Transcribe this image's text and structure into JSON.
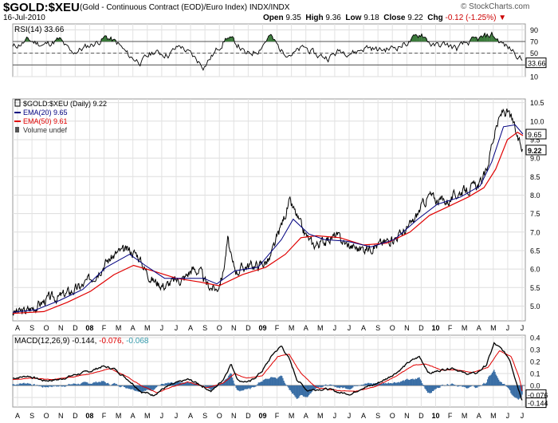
{
  "header": {
    "symbol": "$GOLD:$XEU",
    "description": "(Gold - Continuous Contract (EOD)/Euro Index)",
    "exchange": "INDX/INDX",
    "date": "16-Jul-2010",
    "open_label": "Open",
    "open": "9.35",
    "high_label": "High",
    "high": "9.36",
    "low_label": "Low",
    "low": "9.18",
    "close_label": "Close",
    "close": "9.22",
    "chg_label": "Chg",
    "chg": "-0.12 (-1.25%)",
    "chg_marker": "▼",
    "brand": "© StockCharts.com"
  },
  "colors": {
    "price": "#000000",
    "ema20": "#000080",
    "ema50": "#e00000",
    "rsi_fill": "#3a7a3a",
    "macd_hist": "#3a6ea5",
    "signal": "#e00000",
    "histogram_label": "#3399aa"
  },
  "chart_data": [
    {
      "type": "line",
      "title": "RSI(14) 33.66",
      "legend": "RSI(14)",
      "current": 33.66,
      "current_label": "33.66",
      "ylim": [
        10,
        100
      ],
      "yticks": [
        "10",
        "30",
        "50",
        "70",
        "90"
      ],
      "reference_lines": [
        30,
        50,
        70
      ],
      "anchors": [
        [
          0,
          60
        ],
        [
          20,
          72
        ],
        [
          40,
          64
        ],
        [
          60,
          73
        ],
        [
          75,
          50
        ],
        [
          90,
          58
        ],
        [
          110,
          70
        ],
        [
          120,
          78
        ],
        [
          135,
          66
        ],
        [
          150,
          44
        ],
        [
          165,
          35
        ],
        [
          180,
          52
        ],
        [
          200,
          48
        ],
        [
          215,
          63
        ],
        [
          230,
          46
        ],
        [
          245,
          28
        ],
        [
          260,
          52
        ],
        [
          275,
          78
        ],
        [
          290,
          63
        ],
        [
          300,
          46
        ],
        [
          315,
          56
        ],
        [
          330,
          80
        ],
        [
          345,
          54
        ],
        [
          360,
          49
        ],
        [
          375,
          60
        ],
        [
          390,
          46
        ],
        [
          405,
          43
        ],
        [
          420,
          54
        ],
        [
          440,
          52
        ],
        [
          455,
          61
        ],
        [
          470,
          55
        ],
        [
          485,
          58
        ],
        [
          500,
          64
        ],
        [
          515,
          74
        ],
        [
          525,
          84
        ],
        [
          540,
          62
        ],
        [
          555,
          65
        ],
        [
          570,
          58
        ],
        [
          585,
          68
        ],
        [
          600,
          74
        ],
        [
          615,
          82
        ],
        [
          625,
          70
        ],
        [
          635,
          60
        ],
        [
          645,
          52
        ],
        [
          655,
          36
        ]
      ]
    },
    {
      "type": "line",
      "title": "$GOLD:$XEU (Daily) 9.22",
      "series": [
        {
          "name": "$GOLD:$XEU (Daily)",
          "value": "9.22"
        },
        {
          "name": "EMA(20)",
          "value": "9.65"
        },
        {
          "name": "EMA(50)",
          "value": "9.61"
        },
        {
          "name": "Volume",
          "value": "undef"
        }
      ],
      "ylim": [
        4.6,
        10.6
      ],
      "yticks": [
        "5.0",
        "5.5",
        "6.0",
        "6.5",
        "7.0",
        "7.5",
        "8.0",
        "8.5",
        "9.0",
        "9.5",
        "10.0",
        "10.5"
      ],
      "markers": [
        {
          "label": "9.65"
        },
        {
          "label": "9.22"
        }
      ],
      "anchors": [
        [
          0,
          4.83
        ],
        [
          15,
          4.85
        ],
        [
          30,
          5.0
        ],
        [
          45,
          5.2
        ],
        [
          60,
          5.25
        ],
        [
          75,
          5.4
        ],
        [
          90,
          5.55
        ],
        [
          105,
          5.85
        ],
        [
          120,
          6.2
        ],
        [
          135,
          6.45
        ],
        [
          150,
          6.5
        ],
        [
          160,
          6.4
        ],
        [
          170,
          6.0
        ],
        [
          180,
          5.7
        ],
        [
          195,
          5.55
        ],
        [
          210,
          5.7
        ],
        [
          220,
          5.75
        ],
        [
          230,
          6.0
        ],
        [
          240,
          5.95
        ],
        [
          248,
          5.6
        ],
        [
          256,
          5.5
        ],
        [
          262,
          5.45
        ],
        [
          270,
          5.9
        ],
        [
          276,
          6.8
        ],
        [
          282,
          6.1
        ],
        [
          288,
          5.95
        ],
        [
          300,
          6.1
        ],
        [
          315,
          6.1
        ],
        [
          330,
          6.25
        ],
        [
          345,
          7.2
        ],
        [
          355,
          7.8
        ],
        [
          362,
          7.55
        ],
        [
          372,
          7.05
        ],
        [
          385,
          6.65
        ],
        [
          400,
          6.75
        ],
        [
          415,
          6.9
        ],
        [
          430,
          6.65
        ],
        [
          445,
          6.55
        ],
        [
          460,
          6.6
        ],
        [
          475,
          6.7
        ],
        [
          490,
          6.85
        ],
        [
          505,
          7.05
        ],
        [
          515,
          7.3
        ],
        [
          525,
          7.7
        ],
        [
          535,
          8.0
        ],
        [
          545,
          7.85
        ],
        [
          560,
          7.85
        ],
        [
          575,
          8.1
        ],
        [
          590,
          8.2
        ],
        [
          600,
          8.3
        ],
        [
          608,
          8.6
        ],
        [
          615,
          9.4
        ],
        [
          622,
          9.9
        ],
        [
          630,
          10.3
        ],
        [
          638,
          10.15
        ],
        [
          643,
          9.9
        ],
        [
          650,
          9.4
        ],
        [
          655,
          9.22
        ]
      ],
      "ema20_anchors": [
        [
          0,
          4.83
        ],
        [
          30,
          4.9
        ],
        [
          60,
          5.15
        ],
        [
          90,
          5.45
        ],
        [
          120,
          6.05
        ],
        [
          150,
          6.4
        ],
        [
          170,
          6.1
        ],
        [
          195,
          5.75
        ],
        [
          220,
          5.75
        ],
        [
          245,
          5.75
        ],
        [
          262,
          5.6
        ],
        [
          285,
          5.95
        ],
        [
          315,
          6.05
        ],
        [
          345,
          6.8
        ],
        [
          360,
          7.35
        ],
        [
          380,
          6.95
        ],
        [
          400,
          6.8
        ],
        [
          430,
          6.75
        ],
        [
          460,
          6.6
        ],
        [
          490,
          6.8
        ],
        [
          520,
          7.35
        ],
        [
          545,
          7.75
        ],
        [
          575,
          7.95
        ],
        [
          600,
          8.25
        ],
        [
          615,
          8.9
        ],
        [
          630,
          9.85
        ],
        [
          645,
          9.9
        ],
        [
          655,
          9.65
        ]
      ],
      "ema50_anchors": [
        [
          0,
          4.8
        ],
        [
          40,
          4.85
        ],
        [
          70,
          5.1
        ],
        [
          100,
          5.4
        ],
        [
          130,
          5.85
        ],
        [
          155,
          6.1
        ],
        [
          180,
          5.95
        ],
        [
          210,
          5.75
        ],
        [
          240,
          5.65
        ],
        [
          265,
          5.55
        ],
        [
          295,
          5.85
        ],
        [
          325,
          6.05
        ],
        [
          350,
          6.4
        ],
        [
          370,
          6.85
        ],
        [
          390,
          6.9
        ],
        [
          420,
          6.85
        ],
        [
          450,
          6.65
        ],
        [
          480,
          6.7
        ],
        [
          510,
          7.0
        ],
        [
          535,
          7.45
        ],
        [
          560,
          7.7
        ],
        [
          585,
          7.95
        ],
        [
          605,
          8.2
        ],
        [
          620,
          8.7
        ],
        [
          635,
          9.5
        ],
        [
          648,
          9.7
        ],
        [
          655,
          9.61
        ]
      ]
    },
    {
      "type": "line",
      "title": "MACD(12,26,9) -0.144, -0.076, -0.068",
      "legend_name": "MACD(12,26,9)",
      "values": {
        "macd": "-0.144",
        "signal": "-0.076",
        "histogram": "-0.068"
      },
      "ylim": [
        -0.18,
        0.42
      ],
      "yticks": [
        "-0.1",
        "0.0",
        "0.1",
        "0.2",
        "0.3",
        "0.4"
      ],
      "markers": [
        {
          "label": "-0.076"
        },
        {
          "label": "-0.144"
        }
      ],
      "anchors": [
        [
          0,
          0.06
        ],
        [
          20,
          0.08
        ],
        [
          40,
          0.04
        ],
        [
          60,
          0.05
        ],
        [
          80,
          0.09
        ],
        [
          100,
          0.12
        ],
        [
          115,
          0.16
        ],
        [
          130,
          0.14
        ],
        [
          150,
          0.04
        ],
        [
          165,
          -0.05
        ],
        [
          180,
          -0.08
        ],
        [
          195,
          -0.02
        ],
        [
          210,
          0.02
        ],
        [
          225,
          0.05
        ],
        [
          240,
          0.01
        ],
        [
          255,
          -0.05
        ],
        [
          270,
          0.05
        ],
        [
          280,
          0.18
        ],
        [
          290,
          0.04
        ],
        [
          305,
          0.03
        ],
        [
          320,
          0.12
        ],
        [
          335,
          0.27
        ],
        [
          345,
          0.33
        ],
        [
          355,
          0.22
        ],
        [
          365,
          0.05
        ],
        [
          378,
          -0.04
        ],
        [
          392,
          -0.03
        ],
        [
          405,
          -0.03
        ],
        [
          420,
          -0.06
        ],
        [
          435,
          -0.07
        ],
        [
          448,
          -0.02
        ],
        [
          462,
          0.0
        ],
        [
          478,
          0.05
        ],
        [
          495,
          0.12
        ],
        [
          510,
          0.2
        ],
        [
          522,
          0.24
        ],
        [
          535,
          0.1
        ],
        [
          550,
          0.13
        ],
        [
          565,
          0.15
        ],
        [
          580,
          0.1
        ],
        [
          595,
          0.1
        ],
        [
          608,
          0.17
        ],
        [
          618,
          0.35
        ],
        [
          628,
          0.3
        ],
        [
          638,
          0.22
        ],
        [
          648,
          0.0
        ],
        [
          655,
          -0.144
        ]
      ],
      "signal_anchors": [
        [
          0,
          0.05
        ],
        [
          25,
          0.06
        ],
        [
          50,
          0.05
        ],
        [
          75,
          0.07
        ],
        [
          100,
          0.1
        ],
        [
          125,
          0.14
        ],
        [
          145,
          0.08
        ],
        [
          165,
          0.0
        ],
        [
          185,
          -0.06
        ],
        [
          205,
          -0.01
        ],
        [
          225,
          0.03
        ],
        [
          250,
          -0.02
        ],
        [
          270,
          0.02
        ],
        [
          285,
          0.1
        ],
        [
          300,
          0.06
        ],
        [
          320,
          0.08
        ],
        [
          340,
          0.24
        ],
        [
          355,
          0.26
        ],
        [
          370,
          0.1
        ],
        [
          390,
          -0.02
        ],
        [
          415,
          -0.04
        ],
        [
          440,
          -0.05
        ],
        [
          465,
          -0.01
        ],
        [
          490,
          0.07
        ],
        [
          515,
          0.17
        ],
        [
          530,
          0.18
        ],
        [
          550,
          0.13
        ],
        [
          570,
          0.13
        ],
        [
          590,
          0.11
        ],
        [
          610,
          0.15
        ],
        [
          625,
          0.29
        ],
        [
          640,
          0.24
        ],
        [
          650,
          0.07
        ],
        [
          655,
          -0.076
        ]
      ]
    }
  ],
  "x_axis": {
    "labels": [
      "A",
      "S",
      "O",
      "N",
      "D",
      "08",
      "F",
      "M",
      "A",
      "M",
      "J",
      "J",
      "A",
      "S",
      "O",
      "N",
      "D",
      "09",
      "F",
      "M",
      "A",
      "M",
      "J",
      "J",
      "A",
      "S",
      "O",
      "N",
      "D",
      "10",
      "F",
      "M",
      "A",
      "M",
      "J",
      "J"
    ],
    "bold": [
      "08",
      "09",
      "10"
    ]
  }
}
